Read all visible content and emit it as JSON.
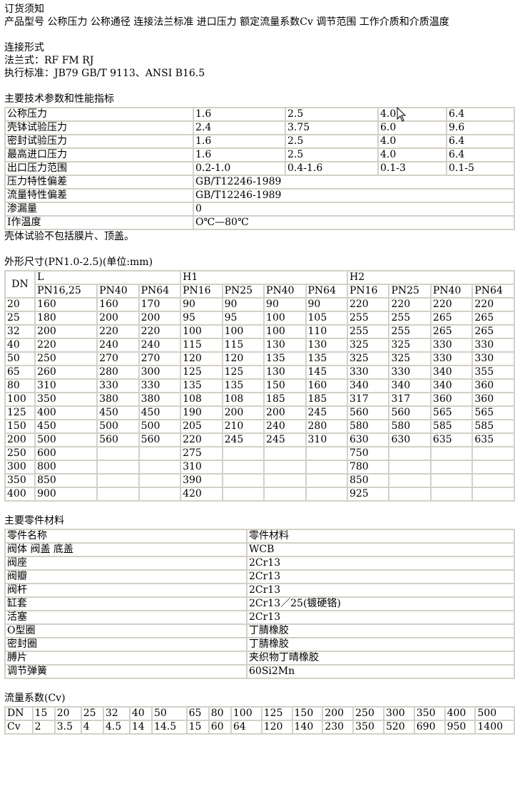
{
  "order": {
    "title": "订货须知",
    "items": "产品型号  公称压力  公称通径  连接法兰标准  进口压力  额定流量系数Cv 调节范围  工作介质和介质温度"
  },
  "connection": {
    "title": "连接形式",
    "flange": "法兰式：RF FM RJ",
    "standard": "执行标准：JB79 GB/T 9113、ANSI B16.5"
  },
  "tech": {
    "title": "主要技术参数和性能指标",
    "rows": [
      [
        "公称压力",
        "1.6",
        "2.5",
        "4.0",
        "6.4"
      ],
      [
        "壳钵试验压力",
        "2.4",
        "3.75",
        "6.0",
        "9.6"
      ],
      [
        "密封试验压力",
        "1.6",
        "2.5",
        "4.0",
        "6.4"
      ],
      [
        "最高进口压力",
        "1.6",
        "2.5",
        "4.0",
        "6.4"
      ],
      [
        "出口压力范围",
        "0.2-1.0",
        "0.4-1.6",
        "0.1-3",
        "0.1-5"
      ],
      [
        "压力特性偏差",
        "GB/T12246-1989"
      ],
      [
        "流量特性偏差",
        "GB/T12246-1989"
      ],
      [
        "渗漏量",
        "0"
      ],
      [
        "I作温度",
        "O℃—80℃"
      ]
    ],
    "note": "壳体试验不包括膜片、顶盖。"
  },
  "dimensions": {
    "title": "外形尺寸(PN1.0-2.5)(单位:mm)",
    "dn_label": "DN",
    "groups": [
      {
        "label": "L",
        "span": 3
      },
      {
        "label": "H1",
        "span": 4
      },
      {
        "label": "H2",
        "span": 4
      }
    ],
    "subheaders": [
      "PN16,25",
      "PN40",
      "PN64",
      "PN16",
      "PN25",
      "PN40",
      "PN64",
      "PN16",
      "PN25",
      "PN40",
      "PN64"
    ],
    "rows": [
      [
        "20",
        "160",
        "160",
        "170",
        "90",
        "90",
        "90",
        "90",
        "220",
        "220",
        "220",
        "220"
      ],
      [
        "25",
        "180",
        "200",
        "200",
        "95",
        "95",
        "100",
        "105",
        "255",
        "255",
        "265",
        "265"
      ],
      [
        "32",
        "200",
        "220",
        "220",
        "100",
        "100",
        "100",
        "110",
        "255",
        "255",
        "265",
        "265"
      ],
      [
        "40",
        "220",
        "240",
        "240",
        "115",
        "115",
        "130",
        "130",
        "325",
        "325",
        "330",
        "330"
      ],
      [
        "50",
        "250",
        "270",
        "270",
        "120",
        "120",
        "135",
        "135",
        "325",
        "325",
        "330",
        "330"
      ],
      [
        "65",
        "260",
        "280",
        "300",
        "125",
        "125",
        "130",
        "145",
        "330",
        "330",
        "340",
        "355"
      ],
      [
        "80",
        "310",
        "330",
        "330",
        "135",
        "135",
        "150",
        "160",
        "340",
        "340",
        "340",
        "360"
      ],
      [
        "100",
        "350",
        "380",
        "380",
        "108",
        "108",
        "185",
        "185",
        "317",
        "317",
        "360",
        "360"
      ],
      [
        "125",
        "400",
        "450",
        "450",
        "190",
        "200",
        "200",
        "245",
        "560",
        "560",
        "565",
        "565"
      ],
      [
        "150",
        "450",
        "500",
        "500",
        "205",
        "210",
        "240",
        "280",
        "580",
        "580",
        "585",
        "585"
      ],
      [
        "200",
        "500",
        "560",
        "560",
        "220",
        "245",
        "245",
        "310",
        "630",
        "630",
        "635",
        "635"
      ],
      [
        "250",
        "600",
        "",
        "",
        "275",
        "",
        "",
        "",
        "750",
        "",
        "",
        ""
      ],
      [
        "300",
        "800",
        "",
        "",
        "310",
        "",
        "",
        "",
        "780",
        "",
        "",
        ""
      ],
      [
        "350",
        "850",
        "",
        "",
        "390",
        "",
        "",
        "",
        "850",
        "",
        "",
        ""
      ],
      [
        "400",
        "900",
        "",
        "",
        "420",
        "",
        "",
        "",
        "925",
        "",
        "",
        ""
      ]
    ]
  },
  "materials": {
    "title": "主要零件材料",
    "rows": [
      [
        "零件名称",
        "零件材料"
      ],
      [
        "阀体 阀盖 底盖",
        "WCB"
      ],
      [
        "阀座",
        "2Cr13"
      ],
      [
        "阀瓣",
        "2Cr13"
      ],
      [
        "阀杆",
        "2Cr13"
      ],
      [
        "缸套",
        "2Cr13／25(镀硬铬)"
      ],
      [
        "活塞",
        "2Cr13"
      ],
      [
        "O型圈",
        "丁腈橡胶"
      ],
      [
        "密封圈",
        "丁腈橡胶"
      ],
      [
        "膊片",
        "夹织物丁晴橡胶"
      ],
      [
        "调节弹簧",
        "60Si2Mn"
      ]
    ]
  },
  "cv": {
    "title": "流量系数(Cv)",
    "rows": [
      [
        "DN",
        "15",
        "20",
        "25",
        "32",
        "40",
        "50",
        "65",
        "80",
        "100",
        "125",
        "150",
        "200",
        "250",
        "300",
        "350",
        "400",
        "500"
      ],
      [
        "Cv",
        "2",
        "3.5",
        "4",
        "4.5",
        "14",
        "14.5",
        "15",
        "60",
        "64",
        "120",
        "140",
        "230",
        "350",
        "520",
        "690",
        "950",
        "1400"
      ]
    ]
  },
  "colors": {
    "border": "#d4d0c8",
    "text": "#000000",
    "background": "#ffffff"
  },
  "cursor_icon": "arrow-pointer"
}
